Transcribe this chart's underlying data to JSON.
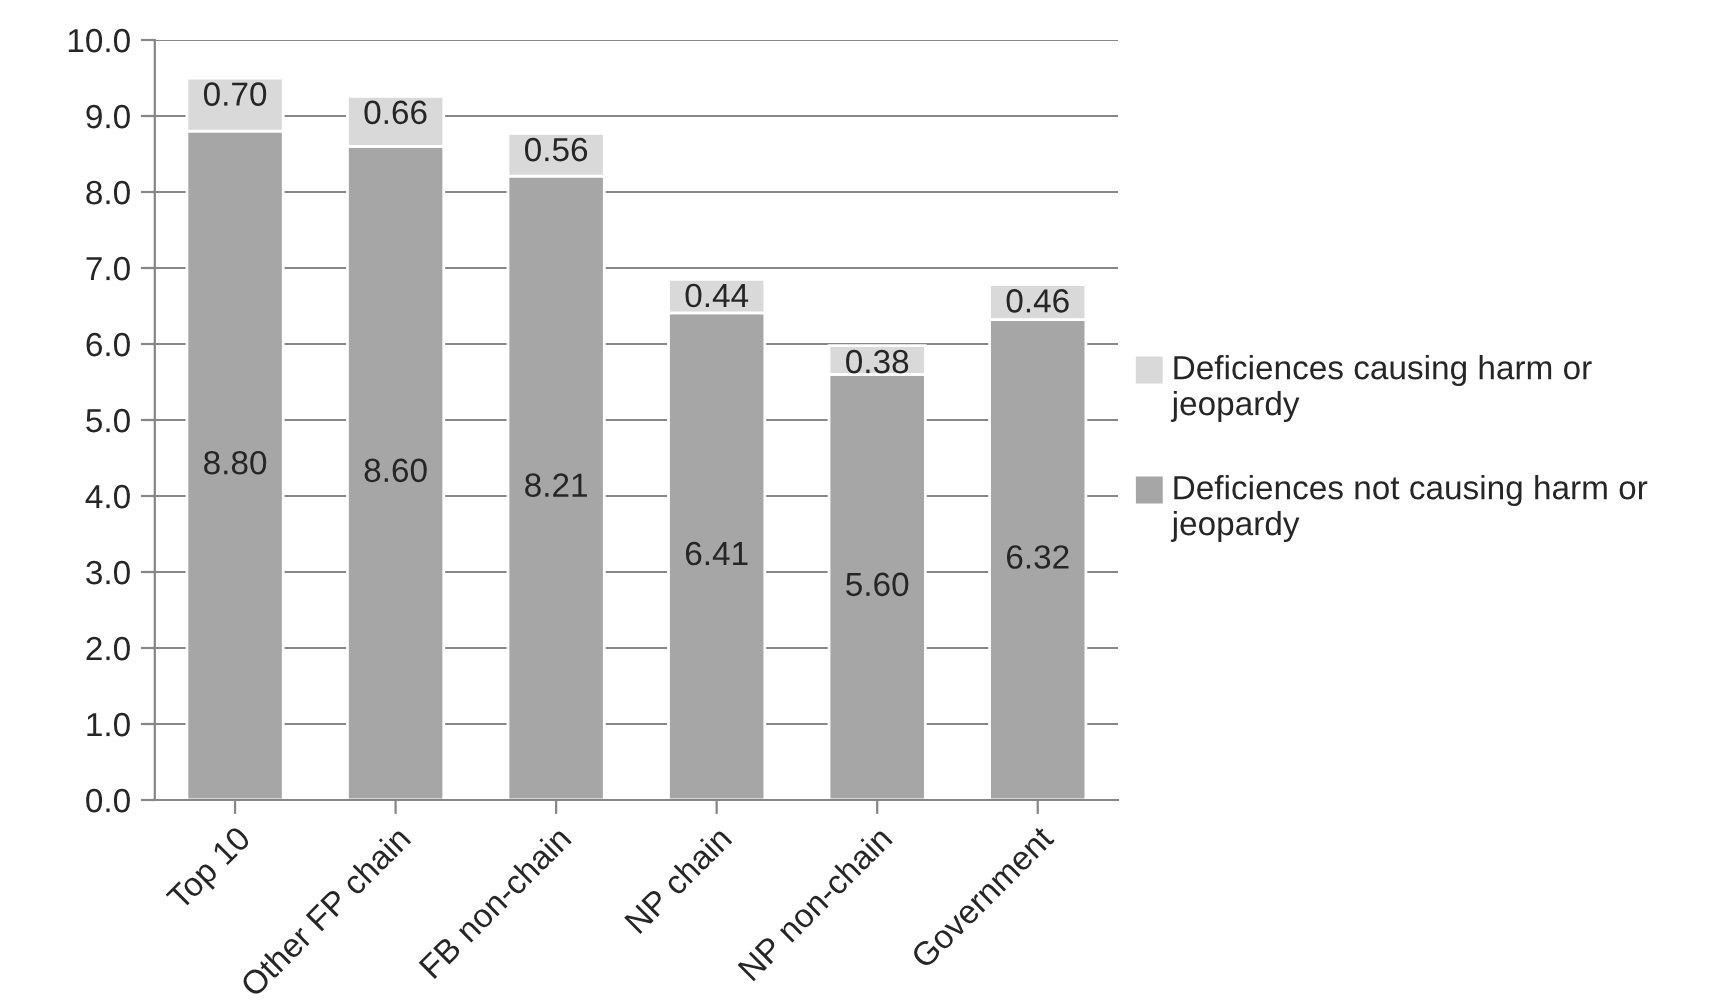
{
  "chart_data": {
    "type": "bar",
    "stacked": true,
    "categories": [
      "Top 10",
      "Other FP chain",
      "FB non-chain",
      "NP chain",
      "NP non-chain",
      "Government"
    ],
    "series": [
      {
        "name": "Deficiences not causing harm or jeopardy",
        "color": "#a6a6a6",
        "values": [
          8.8,
          8.6,
          8.21,
          6.41,
          5.6,
          6.32
        ],
        "value_labels": [
          "8.80",
          "8.60",
          "8.21",
          "6.41",
          "5.60",
          "6.32"
        ]
      },
      {
        "name": "Deficiences causing harm or jeopardy",
        "color": "#d9d9d9",
        "values": [
          0.7,
          0.66,
          0.56,
          0.44,
          0.38,
          0.46
        ],
        "value_labels": [
          "0.70",
          "0.66",
          "0.56",
          "0.44",
          "0.38",
          "0.46"
        ]
      }
    ],
    "ylim": [
      0,
      10
    ],
    "yticks": [
      {
        "value": 0,
        "label": "0.0"
      },
      {
        "value": 1,
        "label": "1.0"
      },
      {
        "value": 2,
        "label": "2.0"
      },
      {
        "value": 3,
        "label": "3.0"
      },
      {
        "value": 4,
        "label": "4.0"
      },
      {
        "value": 5,
        "label": "5.0"
      },
      {
        "value": 6,
        "label": "6.0"
      },
      {
        "value": 7,
        "label": "7.0"
      },
      {
        "value": 8,
        "label": "8.0"
      },
      {
        "value": 9,
        "label": "9.0"
      },
      {
        "value": 10,
        "label": "10.0"
      }
    ],
    "grid": "y",
    "legend": "right"
  }
}
